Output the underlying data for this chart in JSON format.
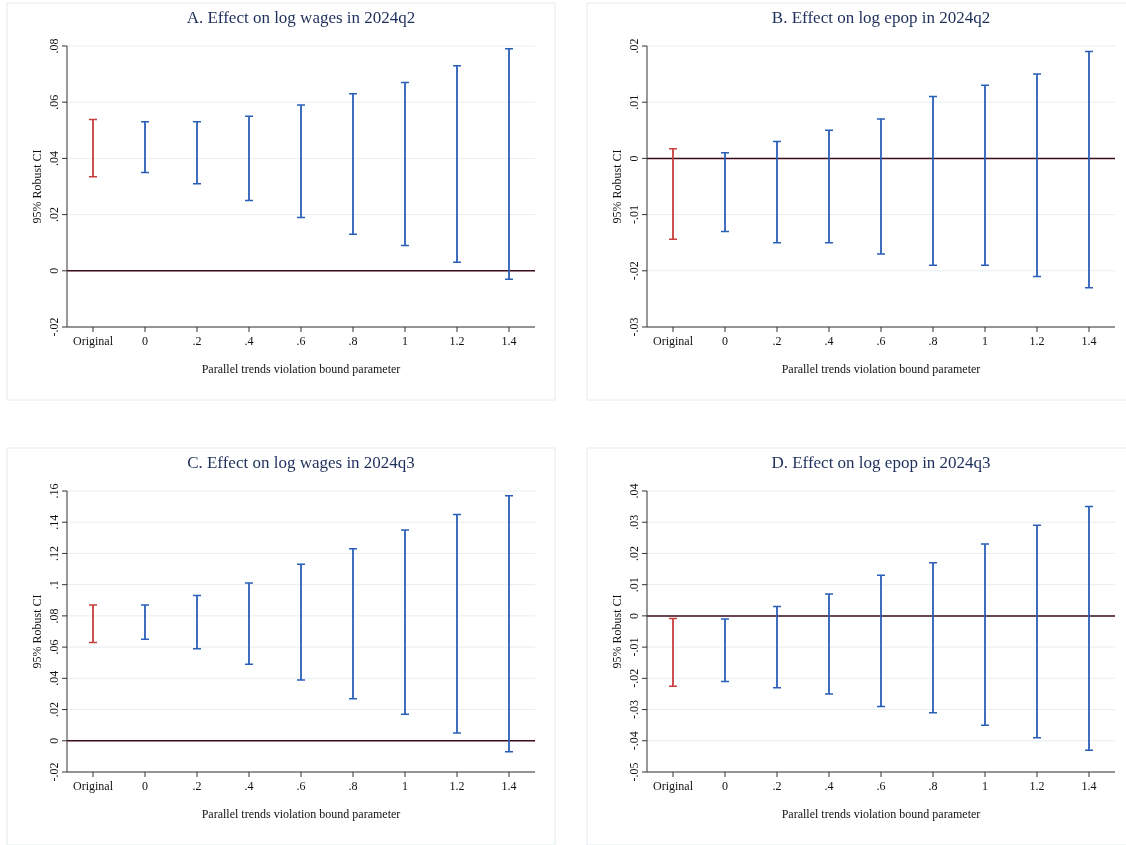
{
  "chart_data": [
    {
      "type": "bar",
      "title": "A. Effect on log wages in 2024q2",
      "xlabel": "Parallel trends violation bound parameter",
      "ylabel": "95% Robust CI",
      "categories": [
        "Original",
        "0",
        ".2",
        ".4",
        ".6",
        ".8",
        "1",
        "1.2",
        "1.4"
      ],
      "base": [
        0.0335,
        0.035,
        0.031,
        0.025,
        0.019,
        0.013,
        0.009,
        0.003,
        -0.003
      ],
      "values": [
        0.0203,
        0.018,
        0.022,
        0.03,
        0.04,
        0.05,
        0.058,
        0.07,
        0.082
      ],
      "colors": [
        "#c8403c",
        "#2b5fb8",
        "#2b5fb8",
        "#2b5fb8",
        "#2b5fb8",
        "#2b5fb8",
        "#2b5fb8",
        "#2b5fb8",
        "#2b5fb8"
      ],
      "ylim": [
        -0.02,
        0.08
      ],
      "yticks": [
        {
          "value": -0.02,
          "label": "-.02"
        },
        {
          "value": 0,
          "label": "0"
        },
        {
          "value": 0.02,
          "label": ".02"
        },
        {
          "value": 0.04,
          "label": ".04"
        },
        {
          "value": 0.06,
          "label": ".06"
        },
        {
          "value": 0.08,
          "label": ".08"
        }
      ],
      "grid": "y",
      "ref_lines": [
        {
          "axis": "y",
          "value": 0,
          "color": "#3d0a1e"
        }
      ]
    },
    {
      "type": "bar",
      "title": "B. Effect on log epop in 2024q2",
      "xlabel": "Parallel trends violation bound parameter",
      "ylabel": "95% Robust CI",
      "categories": [
        "Original",
        "0",
        ".2",
        ".4",
        ".6",
        ".8",
        "1",
        "1.2",
        "1.4"
      ],
      "base": [
        -0.0144,
        -0.013,
        -0.015,
        -0.015,
        -0.017,
        -0.019,
        -0.019,
        -0.021,
        -0.023
      ],
      "values": [
        0.0161,
        0.014,
        0.018,
        0.02,
        0.024,
        0.03,
        0.032,
        0.036,
        0.042
      ],
      "colors": [
        "#c8403c",
        "#2b5fb8",
        "#2b5fb8",
        "#2b5fb8",
        "#2b5fb8",
        "#2b5fb8",
        "#2b5fb8",
        "#2b5fb8",
        "#2b5fb8"
      ],
      "ylim": [
        -0.03,
        0.02
      ],
      "yticks": [
        {
          "value": -0.03,
          "label": "-.03"
        },
        {
          "value": -0.02,
          "label": "-.02"
        },
        {
          "value": -0.01,
          "label": "-.01"
        },
        {
          "value": 0,
          "label": "0"
        },
        {
          "value": 0.01,
          "label": ".01"
        },
        {
          "value": 0.02,
          "label": ".02"
        }
      ],
      "grid": "y",
      "ref_lines": [
        {
          "axis": "y",
          "value": 0,
          "color": "#3d0a1e"
        }
      ]
    },
    {
      "type": "bar",
      "title": "C. Effect on log wages in 2024q3",
      "xlabel": "Parallel trends violation bound parameter",
      "ylabel": "95% Robust CI",
      "categories": [
        "Original",
        "0",
        ".2",
        ".4",
        ".6",
        ".8",
        "1",
        "1.2",
        "1.4"
      ],
      "base": [
        0.063,
        0.065,
        0.059,
        0.049,
        0.039,
        0.027,
        0.017,
        0.005,
        -0.007
      ],
      "values": [
        0.024,
        0.022,
        0.034,
        0.052,
        0.074,
        0.096,
        0.118,
        0.14,
        0.164
      ],
      "colors": [
        "#c8403c",
        "#2b5fb8",
        "#2b5fb8",
        "#2b5fb8",
        "#2b5fb8",
        "#2b5fb8",
        "#2b5fb8",
        "#2b5fb8",
        "#2b5fb8"
      ],
      "ylim": [
        -0.02,
        0.16
      ],
      "yticks": [
        {
          "value": -0.02,
          "label": "-.02"
        },
        {
          "value": 0,
          "label": "0"
        },
        {
          "value": 0.02,
          "label": ".02"
        },
        {
          "value": 0.04,
          "label": ".04"
        },
        {
          "value": 0.06,
          "label": ".06"
        },
        {
          "value": 0.08,
          "label": ".08"
        },
        {
          "value": 0.1,
          "label": ".1"
        },
        {
          "value": 0.12,
          "label": ".12"
        },
        {
          "value": 0.14,
          "label": ".14"
        },
        {
          "value": 0.16,
          "label": ".16"
        }
      ],
      "grid": "y",
      "ref_lines": [
        {
          "axis": "y",
          "value": 0,
          "color": "#3d0a1e"
        }
      ]
    },
    {
      "type": "bar",
      "title": "D. Effect on log epop in 2024q3",
      "xlabel": "Parallel trends violation bound parameter",
      "ylabel": "95% Robust CI",
      "categories": [
        "Original",
        "0",
        ".2",
        ".4",
        ".6",
        ".8",
        "1",
        "1.2",
        "1.4"
      ],
      "base": [
        -0.0225,
        -0.021,
        -0.023,
        -0.025,
        -0.029,
        -0.031,
        -0.035,
        -0.039,
        -0.043
      ],
      "values": [
        0.0217,
        0.02,
        0.026,
        0.032,
        0.042,
        0.048,
        0.058,
        0.068,
        0.078
      ],
      "colors": [
        "#c8403c",
        "#2b5fb8",
        "#2b5fb8",
        "#2b5fb8",
        "#2b5fb8",
        "#2b5fb8",
        "#2b5fb8",
        "#2b5fb8",
        "#2b5fb8"
      ],
      "ylim": [
        -0.05,
        0.04
      ],
      "yticks": [
        {
          "value": -0.05,
          "label": "-.05"
        },
        {
          "value": -0.04,
          "label": "-.04"
        },
        {
          "value": -0.03,
          "label": "-.03"
        },
        {
          "value": -0.02,
          "label": "-.02"
        },
        {
          "value": -0.01,
          "label": "-.01"
        },
        {
          "value": 0,
          "label": "0"
        },
        {
          "value": 0.01,
          "label": ".01"
        },
        {
          "value": 0.02,
          "label": ".02"
        },
        {
          "value": 0.03,
          "label": ".03"
        },
        {
          "value": 0.04,
          "label": ".04"
        }
      ],
      "grid": "y",
      "ref_lines": [
        {
          "axis": "y",
          "value": 0,
          "color": "#3d0a1e"
        }
      ]
    }
  ]
}
